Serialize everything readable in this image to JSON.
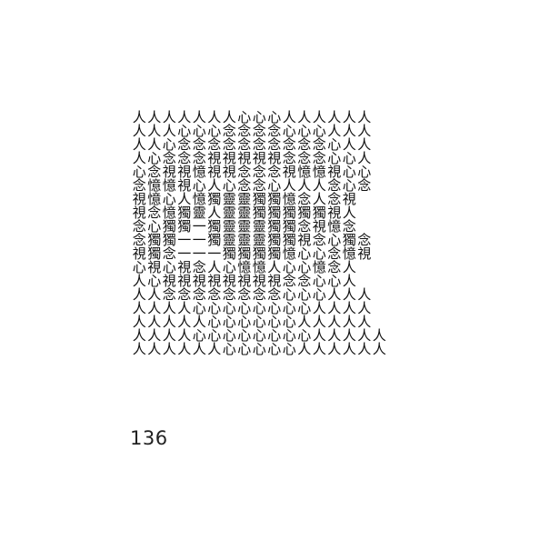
{
  "artwork": {
    "rows": [
      "人人人人人人人心心心人人人人人人",
      "人人人心心心念念念念心心心人人人",
      "人人心念念念念念念念念念念心人人",
      "人心念念念視視視視視念念念心心人",
      "心念視視憶視視念念念視憶憶視心心",
      "念憶憶視心人心念念心人人人念心念",
      "視憶心人憶獨靈靈獨獨憶念人念視",
      "視念憶獨靈人靈靈獨獨獨獨獨視人",
      "念心獨獨一獨靈靈靈獨獨念視憶念",
      "念獨獨一一獨靈靈靈獨獨視念心獨念",
      "視獨念一一一獨獨獨獨憶心心念憶視",
      "心視心視念人心憶憶人心心憶念人",
      "人心視視視視視視視視念念心心人",
      "人人念念念念念念念念心心心人人人",
      "人人人人心心心心心心心心人人人人",
      "人人人人人心心心心心心人人人人人",
      "人人人人心心心心心心心心人人人人人",
      "人人人人人人心心心心心人人人人人人"
    ]
  },
  "caption": {
    "number": "136"
  }
}
